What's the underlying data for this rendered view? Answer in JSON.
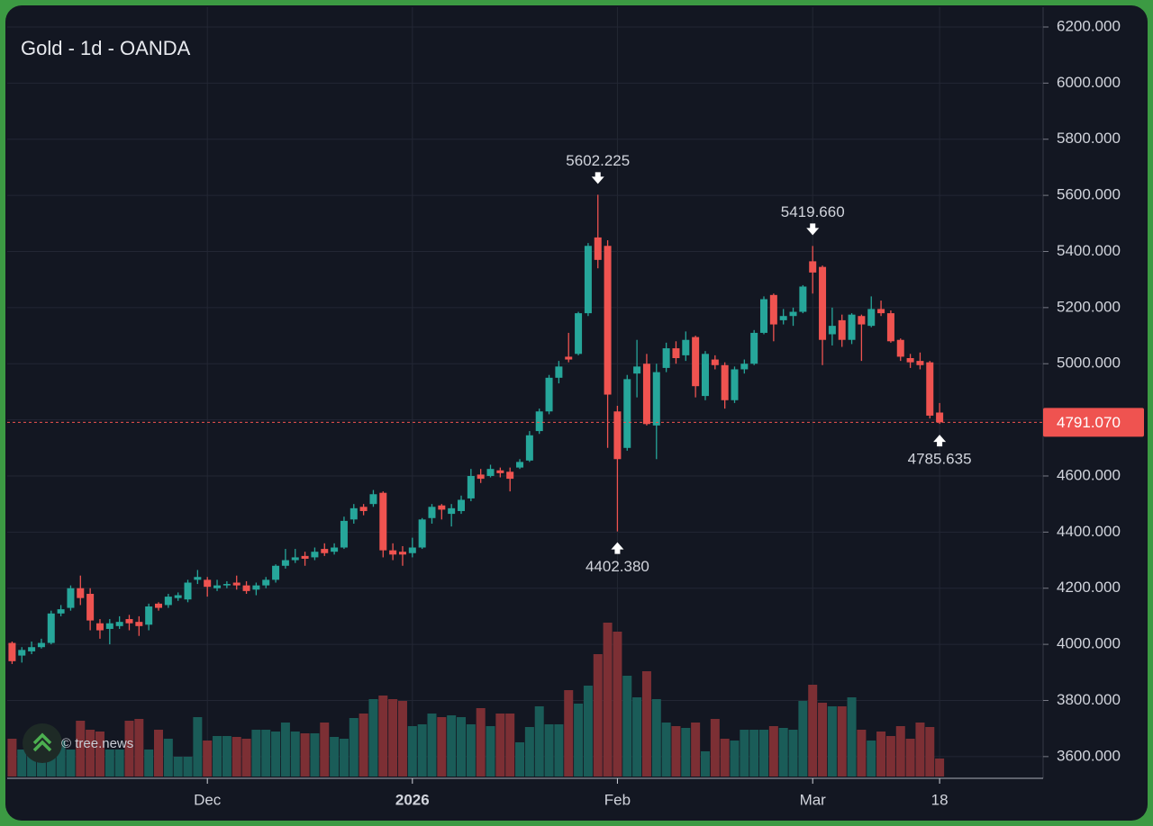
{
  "chart_data": {
    "type": "candlestick",
    "title": "Gold - 1d - OANDA",
    "watermark": "© tree.news",
    "up_color": "#26a69a",
    "down_color": "#ef5350",
    "volume_up_color": "#1a5c58",
    "volume_down_color": "#7c2f34",
    "grid": true,
    "xlim": [
      -0.5,
      105.6
    ],
    "xticks": [
      {
        "value": 20,
        "label": "Dec"
      },
      {
        "value": 41,
        "label": "2026",
        "bold": true
      },
      {
        "value": 62,
        "label": "Feb"
      },
      {
        "value": 82,
        "label": "Mar"
      },
      {
        "value": 95,
        "label": "18"
      }
    ],
    "ylim": [
      3529,
      6270.5
    ],
    "yticks": [
      {
        "value": 3600,
        "label": "3600.000"
      },
      {
        "value": 3800,
        "label": "3800.000"
      },
      {
        "value": 4000,
        "label": "4000.000"
      },
      {
        "value": 4200,
        "label": "4200.000"
      },
      {
        "value": 4400,
        "label": "4400.000"
      },
      {
        "value": 4600,
        "label": "4600.000"
      },
      {
        "value": 4800,
        "label": "4800.000"
      },
      {
        "value": 5000,
        "label": "5000.000"
      },
      {
        "value": 5200,
        "label": "5200.000"
      },
      {
        "value": 5400,
        "label": "5400.000"
      },
      {
        "value": 5600,
        "label": "5600.000"
      },
      {
        "value": 5800,
        "label": "5800.000"
      },
      {
        "value": 6000,
        "label": "6000.000"
      },
      {
        "value": 6200,
        "label": "6200.000"
      }
    ],
    "open": [
      4005,
      3960,
      3975,
      3990,
      4005,
      4110,
      4130,
      4200,
      4180,
      4075,
      4055,
      4065,
      4090,
      4080,
      4070,
      4145,
      4140,
      4165,
      4160,
      4230,
      4230,
      4200,
      4210,
      4220,
      4210,
      4195,
      4210,
      4230,
      4280,
      4300,
      4315,
      4310,
      4340,
      4330,
      4345,
      4445,
      4490,
      4500,
      4540,
      4335,
      4330,
      4325,
      4345,
      4450,
      4495,
      4465,
      4475,
      4520,
      4605,
      4600,
      4620,
      4615,
      4630,
      4655,
      4760,
      4830,
      4950,
      5025,
      5035,
      5180,
      5450,
      5420,
      4830,
      4700,
      4965,
      5000,
      4780,
      4985,
      5055,
      5030,
      5095,
      4885,
      5015,
      4995,
      4870,
      4980,
      5000,
      5110,
      5245,
      5155,
      5170,
      5185,
      5365,
      5345,
      5105,
      5155,
      5085,
      5170,
      5135,
      5195,
      5180,
      5085,
      5020,
      5010,
      5005,
      4826
    ],
    "high": [
      4010,
      3990,
      4010,
      4020,
      4120,
      4140,
      4210,
      4245,
      4200,
      4090,
      4090,
      4100,
      4105,
      4100,
      4145,
      4150,
      4180,
      4185,
      4230,
      4265,
      4240,
      4230,
      4225,
      4245,
      4225,
      4220,
      4240,
      4285,
      4340,
      4340,
      4330,
      4345,
      4360,
      4360,
      4455,
      4500,
      4500,
      4550,
      4545,
      4360,
      4350,
      4380,
      4450,
      4500,
      4500,
      4500,
      4530,
      4625,
      4625,
      4640,
      4630,
      4630,
      4660,
      4760,
      4840,
      4960,
      5010,
      5110,
      5185,
      5430,
      5602.225,
      5440,
      4850,
      4960,
      5085,
      5035,
      5000,
      5075,
      5080,
      5115,
      5100,
      5045,
      5030,
      5005,
      4990,
      5015,
      5120,
      5240,
      5250,
      5195,
      5200,
      5280,
      5419.66,
      5350,
      5200,
      5175,
      5180,
      5175,
      5240,
      5225,
      5190,
      5090,
      5035,
      5040,
      5010,
      4860
    ],
    "low": [
      3930,
      3935,
      3965,
      3985,
      4000,
      4100,
      4120,
      4140,
      4050,
      4020,
      4000,
      4055,
      4050,
      4030,
      4050,
      4120,
      4130,
      4155,
      4150,
      4215,
      4170,
      4190,
      4200,
      4195,
      4180,
      4175,
      4200,
      4220,
      4270,
      4290,
      4280,
      4300,
      4315,
      4320,
      4340,
      4430,
      4460,
      4490,
      4310,
      4300,
      4280,
      4310,
      4340,
      4430,
      4445,
      4420,
      4465,
      4510,
      4575,
      4595,
      4595,
      4545,
      4625,
      4650,
      4750,
      4820,
      4930,
      5005,
      5030,
      5170,
      5340,
      4700,
      4402.38,
      4690,
      4880,
      4780,
      4660,
      4970,
      5000,
      5010,
      4880,
      4870,
      4980,
      4840,
      4860,
      4965,
      4995,
      5105,
      5080,
      5140,
      5135,
      5180,
      5250,
      4995,
      5065,
      5060,
      5070,
      5010,
      5130,
      5170,
      5075,
      5010,
      4985,
      4980,
      4805,
      4785.635
    ],
    "close": [
      3940,
      3980,
      3990,
      4005,
      4110,
      4125,
      4200,
      4165,
      4085,
      4050,
      4075,
      4080,
      4075,
      4065,
      4135,
      4130,
      4170,
      4175,
      4220,
      4240,
      4205,
      4210,
      4215,
      4210,
      4190,
      4210,
      4230,
      4280,
      4300,
      4310,
      4305,
      4330,
      4325,
      4345,
      4440,
      4485,
      4475,
      4535,
      4335,
      4320,
      4320,
      4345,
      4445,
      4490,
      4480,
      4485,
      4515,
      4600,
      4590,
      4625,
      4610,
      4590,
      4650,
      4745,
      4830,
      4950,
      4990,
      5015,
      5180,
      5420,
      5370,
      4890,
      4660,
      4945,
      4990,
      4785,
      4970,
      5055,
      5020,
      5085,
      4920,
      5035,
      4995,
      4870,
      4980,
      5000,
      5110,
      5230,
      5140,
      5170,
      5185,
      5275,
      5325,
      5085,
      5135,
      5085,
      5175,
      5140,
      5195,
      5180,
      5080,
      5025,
      5005,
      4995,
      4815,
      4791.07
    ],
    "volume": [
      42,
      30,
      35,
      35,
      30,
      40,
      30,
      62,
      52,
      50,
      30,
      30,
      62,
      64,
      30,
      52,
      42,
      22,
      22,
      66,
      40,
      45,
      45,
      44,
      42,
      52,
      52,
      50,
      60,
      50,
      48,
      48,
      60,
      44,
      42,
      65,
      70,
      86,
      90,
      86,
      84,
      56,
      58,
      70,
      66,
      68,
      66,
      58,
      76,
      56,
      70,
      70,
      38,
      55,
      78,
      58,
      58,
      96,
      81,
      101,
      136,
      171,
      161,
      112,
      88,
      117,
      86,
      60,
      56,
      54,
      60,
      28,
      64,
      42,
      40,
      52,
      52,
      52,
      56,
      54,
      52,
      84,
      102,
      82,
      78,
      78,
      88,
      52,
      40,
      50,
      45,
      56,
      42,
      60,
      55,
      20
    ],
    "annotations": [
      {
        "index": 60,
        "value": 5602.225,
        "label": "5602.225",
        "position": "above"
      },
      {
        "index": 82,
        "value": 5419.66,
        "label": "5419.660",
        "position": "above"
      },
      {
        "index": 62,
        "value": 4402.38,
        "label": "4402.380",
        "position": "below"
      },
      {
        "index": 95,
        "value": 4785.635,
        "label": "4785.635",
        "position": "below"
      }
    ],
    "last_price": {
      "value": 4791.07,
      "label": "4791.070"
    }
  }
}
